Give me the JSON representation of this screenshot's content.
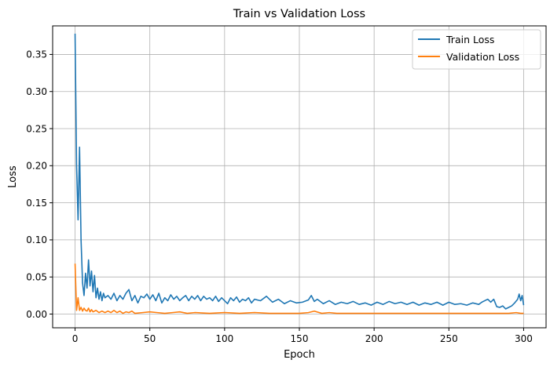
{
  "chart_data": {
    "type": "line",
    "title": "Train vs Validation Loss",
    "xlabel": "Epoch",
    "ylabel": "Loss",
    "xlim": [
      -15,
      315
    ],
    "ylim": [
      -0.0185,
      0.3885
    ],
    "xticks": [
      0,
      50,
      100,
      150,
      200,
      250,
      300
    ],
    "xtick_labels": [
      "0",
      "50",
      "100",
      "150",
      "200",
      "250",
      "300"
    ],
    "yticks": [
      0.0,
      0.05,
      0.1,
      0.15,
      0.2,
      0.25,
      0.3,
      0.35
    ],
    "ytick_labels": [
      "0.00",
      "0.05",
      "0.10",
      "0.15",
      "0.20",
      "0.25",
      "0.30",
      "0.35"
    ],
    "grid": true,
    "legend_position": "top-right",
    "series": [
      {
        "name": "Train Loss",
        "color": "#1f77b4",
        "x": [
          0,
          1,
          2,
          3,
          4,
          5,
          6,
          7,
          8,
          9,
          10,
          11,
          12,
          13,
          14,
          15,
          16,
          17,
          18,
          19,
          20,
          22,
          24,
          26,
          28,
          30,
          32,
          34,
          36,
          38,
          40,
          42,
          44,
          46,
          48,
          50,
          52,
          54,
          56,
          58,
          60,
          62,
          64,
          66,
          68,
          70,
          72,
          74,
          76,
          78,
          80,
          82,
          84,
          86,
          88,
          90,
          92,
          94,
          96,
          98,
          100,
          102,
          104,
          106,
          108,
          110,
          112,
          114,
          116,
          118,
          120,
          124,
          128,
          132,
          136,
          140,
          144,
          148,
          152,
          156,
          158,
          160,
          162,
          166,
          170,
          174,
          178,
          182,
          186,
          190,
          194,
          198,
          202,
          206,
          210,
          214,
          218,
          222,
          226,
          230,
          234,
          238,
          242,
          246,
          250,
          254,
          258,
          262,
          266,
          270,
          272,
          274,
          276,
          278,
          280,
          282,
          284,
          286,
          288,
          290,
          292,
          294,
          296,
          297,
          298,
          299,
          300
        ],
        "values": [
          0.378,
          0.2,
          0.127,
          0.225,
          0.1,
          0.042,
          0.025,
          0.055,
          0.035,
          0.073,
          0.038,
          0.058,
          0.03,
          0.052,
          0.022,
          0.035,
          0.02,
          0.03,
          0.018,
          0.028,
          0.022,
          0.025,
          0.02,
          0.028,
          0.018,
          0.025,
          0.02,
          0.028,
          0.033,
          0.018,
          0.025,
          0.015,
          0.024,
          0.022,
          0.027,
          0.02,
          0.026,
          0.018,
          0.028,
          0.015,
          0.022,
          0.018,
          0.026,
          0.02,
          0.024,
          0.018,
          0.022,
          0.025,
          0.018,
          0.024,
          0.02,
          0.025,
          0.018,
          0.024,
          0.02,
          0.022,
          0.018,
          0.024,
          0.017,
          0.022,
          0.018,
          0.014,
          0.022,
          0.018,
          0.023,
          0.016,
          0.02,
          0.018,
          0.022,
          0.015,
          0.02,
          0.018,
          0.024,
          0.016,
          0.02,
          0.014,
          0.018,
          0.015,
          0.016,
          0.019,
          0.025,
          0.017,
          0.02,
          0.014,
          0.018,
          0.013,
          0.016,
          0.014,
          0.017,
          0.013,
          0.015,
          0.012,
          0.016,
          0.013,
          0.017,
          0.014,
          0.016,
          0.013,
          0.016,
          0.012,
          0.015,
          0.013,
          0.016,
          0.012,
          0.016,
          0.013,
          0.014,
          0.012,
          0.015,
          0.013,
          0.016,
          0.018,
          0.02,
          0.016,
          0.02,
          0.01,
          0.009,
          0.011,
          0.007,
          0.009,
          0.011,
          0.015,
          0.02,
          0.027,
          0.018,
          0.025,
          0.012
        ]
      },
      {
        "name": "Validation Loss",
        "color": "#ff7f0e",
        "x": [
          0,
          1,
          2,
          3,
          4,
          5,
          6,
          7,
          8,
          9,
          10,
          11,
          12,
          14,
          16,
          18,
          20,
          22,
          24,
          26,
          28,
          30,
          32,
          34,
          36,
          38,
          40,
          45,
          50,
          55,
          60,
          65,
          70,
          75,
          80,
          90,
          100,
          110,
          120,
          130,
          140,
          150,
          156,
          160,
          165,
          170,
          175,
          180,
          190,
          200,
          210,
          220,
          230,
          240,
          250,
          260,
          270,
          280,
          290,
          295,
          298,
          300
        ],
        "values": [
          0.068,
          0.005,
          0.022,
          0.005,
          0.009,
          0.004,
          0.008,
          0.005,
          0.004,
          0.008,
          0.003,
          0.006,
          0.003,
          0.005,
          0.002,
          0.004,
          0.002,
          0.004,
          0.002,
          0.005,
          0.002,
          0.004,
          0.001,
          0.003,
          0.002,
          0.004,
          0.001,
          0.002,
          0.003,
          0.002,
          0.001,
          0.002,
          0.003,
          0.001,
          0.002,
          0.001,
          0.002,
          0.001,
          0.002,
          0.001,
          0.001,
          0.001,
          0.002,
          0.004,
          0.001,
          0.002,
          0.001,
          0.001,
          0.001,
          0.001,
          0.001,
          0.001,
          0.001,
          0.001,
          0.001,
          0.001,
          0.001,
          0.001,
          0.001,
          0.002,
          0.001,
          0.001
        ]
      }
    ]
  }
}
